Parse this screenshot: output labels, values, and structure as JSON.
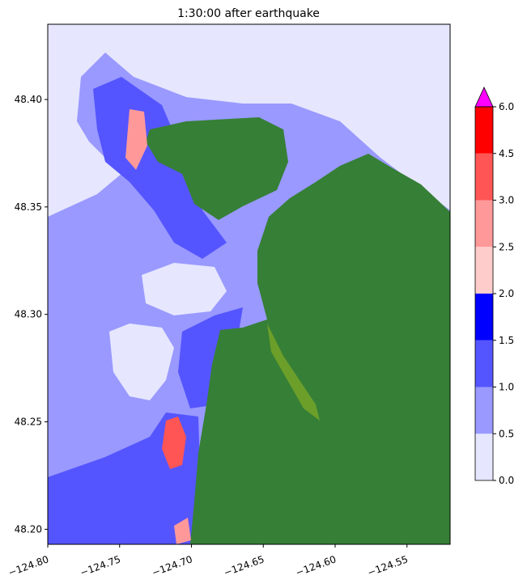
{
  "chart_data": {
    "type": "heatmap",
    "title": "1:30:00 after earthquake",
    "xlim": [
      -124.8,
      -124.52
    ],
    "ylim": [
      48.193,
      48.435
    ],
    "xticks": [
      {
        "value": -124.8,
        "label": "−124.80"
      },
      {
        "value": -124.75,
        "label": "−124.75"
      },
      {
        "value": -124.7,
        "label": "−124.70"
      },
      {
        "value": -124.65,
        "label": "−124.65"
      },
      {
        "value": -124.6,
        "label": "−124.60"
      },
      {
        "value": -124.55,
        "label": "−124.55"
      }
    ],
    "yticks": [
      {
        "value": 48.2,
        "label": "48.20"
      },
      {
        "value": 48.25,
        "label": "48.25"
      },
      {
        "value": 48.3,
        "label": "48.30"
      },
      {
        "value": 48.35,
        "label": "48.35"
      },
      {
        "value": 48.4,
        "label": "48.40"
      }
    ],
    "colorbar": {
      "levels": [
        {
          "value": 0,
          "label": "0.0"
        },
        {
          "value": 0.5,
          "label": "0.5"
        },
        {
          "value": 1,
          "label": "1.0"
        },
        {
          "value": 1.5,
          "label": "1.5"
        },
        {
          "value": 2,
          "label": "2.0"
        },
        {
          "value": 2.5,
          "label": "2.5"
        },
        {
          "value": 3,
          "label": "3.0"
        },
        {
          "value": 4.5,
          "label": "4.5"
        },
        {
          "value": 6,
          "label": "6.0"
        }
      ],
      "colors": [
        "#e6e6ff",
        "#9999ff",
        "#5555ff",
        "#0000ff",
        "#ffcccc",
        "#ff9999",
        "#ff5555",
        "#ff0000"
      ],
      "over_color": "#ff00ff"
    }
  }
}
